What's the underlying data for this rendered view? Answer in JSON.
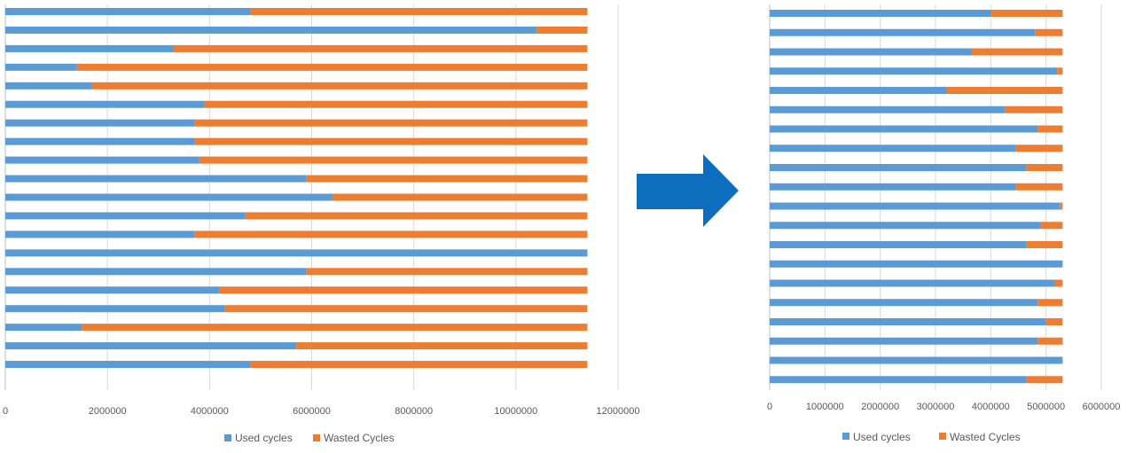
{
  "colors": {
    "used": "#5b9bd5",
    "wasted": "#ed7d31",
    "arrow": "#0e6ebe",
    "grid": "#d9d9d9",
    "text": "#595959"
  },
  "chart_data": [
    {
      "type": "bar",
      "orientation": "horizontal",
      "stacked": true,
      "xlim": [
        0,
        12000000
      ],
      "xticks": [
        "0",
        "2000000",
        "4000000",
        "6000000",
        "8000000",
        "10000000",
        "12000000"
      ],
      "xtick_values": [
        0,
        2000000,
        4000000,
        6000000,
        8000000,
        10000000,
        12000000
      ],
      "grid": true,
      "legend_position": "bottom",
      "series": [
        {
          "name": "Used cycles",
          "values": [
            4800000,
            10400000,
            3300000,
            1400000,
            1700000,
            3900000,
            3700000,
            3700000,
            3800000,
            5900000,
            6400000,
            4700000,
            3700000,
            11400000,
            5900000,
            4200000,
            4300000,
            1500000,
            5700000,
            4800000
          ]
        },
        {
          "name": "Wasted Cycles",
          "values": [
            6600000,
            1000000,
            8100000,
            10000000,
            9700000,
            7500000,
            7700000,
            7700000,
            7600000,
            5500000,
            5000000,
            6700000,
            7700000,
            0,
            5500000,
            7200000,
            7100000,
            9900000,
            5700000,
            6600000
          ]
        }
      ]
    },
    {
      "type": "bar",
      "orientation": "horizontal",
      "stacked": true,
      "xlim": [
        0,
        6000000
      ],
      "xticks": [
        "0",
        "1000000",
        "2000000",
        "3000000",
        "4000000",
        "5000000",
        "6000000"
      ],
      "xtick_values": [
        0,
        1000000,
        2000000,
        3000000,
        4000000,
        5000000,
        6000000
      ],
      "grid": true,
      "legend_position": "bottom",
      "series": [
        {
          "name": "Used cycles",
          "values": [
            4000000,
            4800000,
            3650000,
            5200000,
            3200000,
            4250000,
            4850000,
            4450000,
            4650000,
            4450000,
            5250000,
            4900000,
            4650000,
            5300000,
            5150000,
            4850000,
            5000000,
            4850000,
            5300000,
            4650000
          ]
        },
        {
          "name": "Wasted Cycles",
          "values": [
            1300000,
            500000,
            1650000,
            100000,
            2100000,
            1050000,
            450000,
            850000,
            650000,
            850000,
            50000,
            400000,
            650000,
            0,
            150000,
            450000,
            300000,
            450000,
            0,
            650000
          ]
        }
      ]
    }
  ]
}
